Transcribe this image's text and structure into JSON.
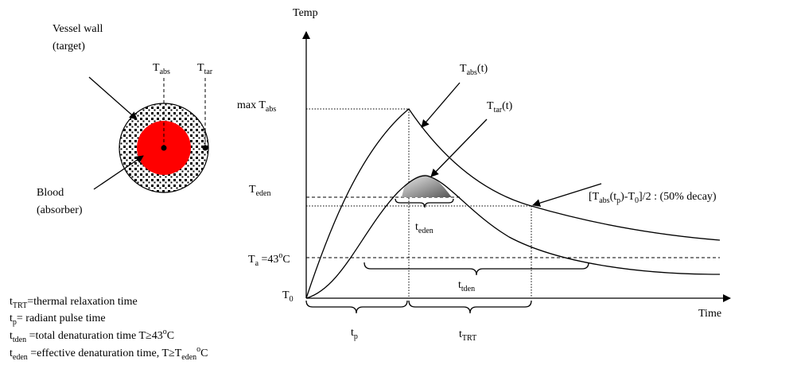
{
  "labels": {
    "vessel_wall": [
      {
        "text": "Vessel wall"
      }
    ],
    "target": [
      {
        "text": "(target)"
      }
    ],
    "t_abs_marker": [
      {
        "text": "T"
      },
      {
        "sub": "abs"
      }
    ],
    "t_tar_marker": [
      {
        "text": "T"
      },
      {
        "sub": "tar"
      }
    ],
    "blood": [
      {
        "text": "Blood"
      }
    ],
    "absorber": [
      {
        "text": "(absorber)"
      }
    ],
    "y_axis": [
      {
        "text": "Temp"
      }
    ],
    "x_axis": [
      {
        "text": "Time"
      }
    ],
    "max_t_abs": [
      {
        "text": "max T"
      },
      {
        "sub": "abs"
      }
    ],
    "t_eden_level": [
      {
        "text": "T"
      },
      {
        "sub": "eden"
      }
    ],
    "t_a_level": [
      {
        "text": "T"
      },
      {
        "sub": "a"
      },
      {
        "text": " =43"
      },
      {
        "sup": "o"
      },
      {
        "text": "C"
      }
    ],
    "t_0": [
      {
        "text": "T"
      },
      {
        "sub": "0"
      }
    ],
    "t_abs_curve": [
      {
        "text": "T"
      },
      {
        "sub": "abs"
      },
      {
        "text": "(t)"
      }
    ],
    "t_tar_curve": [
      {
        "text": "T"
      },
      {
        "sub": "tar"
      },
      {
        "text": "(t)"
      }
    ],
    "decay": [
      {
        "text": "[T"
      },
      {
        "sub": "abs"
      },
      {
        "text": "(t"
      },
      {
        "sub": "p"
      },
      {
        "text": ")-T"
      },
      {
        "sub": "0"
      },
      {
        "text": "]/2 : (50% decay)"
      }
    ],
    "t_eden_span": [
      {
        "text": "t"
      },
      {
        "sub": "eden"
      }
    ],
    "t_tden_span": [
      {
        "text": "t"
      },
      {
        "sub": "tden"
      }
    ],
    "t_p_span": [
      {
        "text": "t"
      },
      {
        "sub": "p"
      }
    ],
    "t_trt_span": [
      {
        "text": "t"
      },
      {
        "sub": "TRT"
      }
    ]
  },
  "legend": [
    [
      {
        "text": "t"
      },
      {
        "sub": "TRT"
      },
      {
        "text": "=thermal relaxation time"
      }
    ],
    [
      {
        "text": "t"
      },
      {
        "sub": "p"
      },
      {
        "text": "= radiant pulse time"
      }
    ],
    [
      {
        "text": "t"
      },
      {
        "sub": "tden"
      },
      {
        "text": " =total denaturation time T≥43"
      },
      {
        "sup": "o"
      },
      {
        "text": "C"
      }
    ],
    [
      {
        "text": "t"
      },
      {
        "sub": "eden"
      },
      {
        "text": " =effective denaturation time, T≥T"
      },
      {
        "sub": "eden"
      },
      {
        "sup": "o"
      },
      {
        "text": "C"
      }
    ]
  ]
}
